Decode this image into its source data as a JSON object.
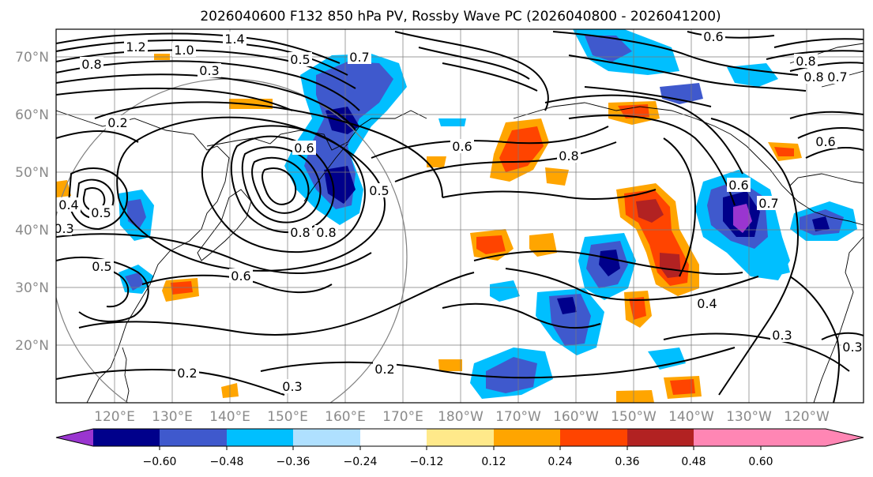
{
  "title": "2026040600 F132 850 hPa PV, Rossby Wave PC (2026040800 - 2026041200)",
  "lat_labels": [
    "70°N",
    "60°N",
    "50°N",
    "40°N",
    "30°N",
    "20°N"
  ],
  "lon_labels": [
    "120°E",
    "130°E",
    "140°E",
    "150°E",
    "160°E",
    "170°E",
    "180°W",
    "170°W",
    "160°W",
    "150°W",
    "140°W",
    "130°W",
    "120°W"
  ],
  "colorbar": {
    "colors": [
      "#9a35d0",
      "#00008b",
      "#3f59cd",
      "#00bfff",
      "#afe0ff",
      "#ffffff",
      "#ffe98a",
      "#ffa500",
      "#ff4400",
      "#b22222",
      "#ff86b4"
    ],
    "tick_labels": [
      "−0.60",
      "−0.48",
      "−0.36",
      "−0.24",
      "−0.12",
      "0.12",
      "0.24",
      "0.36",
      "0.48",
      "0.60"
    ]
  },
  "contour_labels": [
    {
      "text": "1.2"
    },
    {
      "text": "1.4"
    },
    {
      "text": "1.0"
    },
    {
      "text": "0.8"
    },
    {
      "text": "0.3"
    },
    {
      "text": "0.5"
    },
    {
      "text": "0.7"
    },
    {
      "text": "0.2"
    },
    {
      "text": "0.6"
    },
    {
      "text": "0.4"
    },
    {
      "text": "0.5"
    },
    {
      "text": "0.3"
    },
    {
      "text": "0.5"
    },
    {
      "text": "0.6"
    },
    {
      "text": "0.8"
    },
    {
      "text": "0.8"
    },
    {
      "text": "0.5"
    },
    {
      "text": "0.6"
    },
    {
      "text": "0.8"
    },
    {
      "text": "0.2"
    },
    {
      "text": "0.3"
    },
    {
      "text": "0.2"
    },
    {
      "text": "0.6"
    },
    {
      "text": "0.8"
    },
    {
      "text": "0.4"
    },
    {
      "text": "0.3"
    },
    {
      "text": "0.6"
    },
    {
      "text": "0.8"
    },
    {
      "text": "0.7"
    },
    {
      "text": "0.3"
    },
    {
      "text": "0.6"
    },
    {
      "text": "0.7"
    }
  ]
}
